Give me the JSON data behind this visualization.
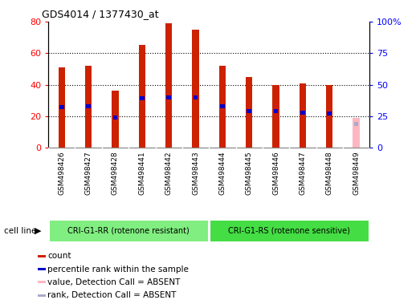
{
  "title": "GDS4014 / 1377430_at",
  "samples": [
    "GSM498426",
    "GSM498427",
    "GSM498428",
    "GSM498441",
    "GSM498442",
    "GSM498443",
    "GSM498444",
    "GSM498445",
    "GSM498446",
    "GSM498447",
    "GSM498448",
    "GSM498449"
  ],
  "counts": [
    51,
    52,
    36,
    65,
    79,
    75,
    52,
    45,
    40,
    41,
    40,
    19
  ],
  "percentile_ranks": [
    32,
    33,
    24,
    39,
    40,
    40,
    33,
    29,
    29,
    28,
    27,
    19
  ],
  "absent": [
    false,
    false,
    false,
    false,
    false,
    false,
    false,
    false,
    false,
    false,
    false,
    true
  ],
  "groups": [
    {
      "label": "CRI-G1-RR (rotenone resistant)",
      "start": 0,
      "end": 6,
      "color": "#80EE80"
    },
    {
      "label": "CRI-G1-RS (rotenone sensitive)",
      "start": 6,
      "end": 12,
      "color": "#44DD44"
    }
  ],
  "ylim_left": [
    0,
    80
  ],
  "ylim_right": [
    0,
    100
  ],
  "yticks_left": [
    0,
    20,
    40,
    60,
    80
  ],
  "yticks_right": [
    0,
    25,
    50,
    75,
    100
  ],
  "yticklabels_right": [
    "0",
    "25",
    "50",
    "75",
    "100%"
  ],
  "bar_color_present": "#CC2200",
  "bar_color_absent": "#FFB6C1",
  "rank_color_present": "#0000CC",
  "rank_color_absent": "#AAAACC",
  "cell_line_label": "cell line",
  "legend_items": [
    {
      "color": "#CC2200",
      "label": "count"
    },
    {
      "color": "#0000CC",
      "label": "percentile rank within the sample"
    },
    {
      "color": "#FFB6C1",
      "label": "value, Detection Call = ABSENT"
    },
    {
      "color": "#AAAACC",
      "label": "rank, Detection Call = ABSENT"
    }
  ]
}
